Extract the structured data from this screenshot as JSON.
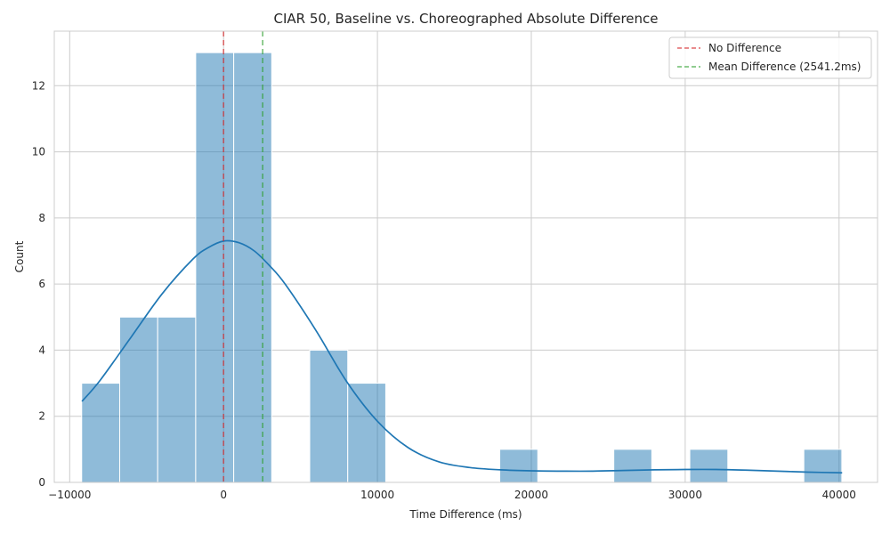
{
  "chart_data": {
    "type": "histogram",
    "title": "CIAR 50, Baseline vs. Choreographed Absolute Difference",
    "xlabel": "Time Difference (ms)",
    "ylabel": "Count",
    "xlim": [
      -11000,
      42500
    ],
    "ylim": [
      0,
      13.65
    ],
    "x_ticks": [
      -10000,
      0,
      10000,
      20000,
      30000,
      40000
    ],
    "x_tick_labels": [
      "−10000",
      "0",
      "10000",
      "20000",
      "30000",
      "40000"
    ],
    "y_ticks": [
      0,
      2,
      4,
      6,
      8,
      10,
      12
    ],
    "y_tick_labels": [
      "0",
      "2",
      "4",
      "6",
      "8",
      "10",
      "12"
    ],
    "bins": [
      {
        "x0": -9220,
        "x1": -6750,
        "count": 3
      },
      {
        "x0": -6750,
        "x1": -4280,
        "count": 5
      },
      {
        "x0": -4280,
        "x1": -1810,
        "count": 5
      },
      {
        "x0": -1810,
        "x1": 660,
        "count": 13
      },
      {
        "x0": 660,
        "x1": 3130,
        "count": 13
      },
      {
        "x0": 5600,
        "x1": 8070,
        "count": 4
      },
      {
        "x0": 8070,
        "x1": 10540,
        "count": 3
      },
      {
        "x0": 17950,
        "x1": 20420,
        "count": 1
      },
      {
        "x0": 25360,
        "x1": 27830,
        "count": 1
      },
      {
        "x0": 30300,
        "x1": 32770,
        "count": 1
      },
      {
        "x0": 37710,
        "x1": 40180,
        "count": 1
      }
    ],
    "kde": {
      "x": [
        -9200,
        -8000,
        -6000,
        -4000,
        -2000,
        -1000,
        0,
        1000,
        2000,
        3000,
        4000,
        6000,
        8000,
        10000,
        12000,
        14000,
        16000,
        18000,
        20000,
        22000,
        24000,
        26000,
        28000,
        30000,
        32000,
        34000,
        36000,
        38000,
        40200
      ],
      "y": [
        2.45,
        3.1,
        4.4,
        5.7,
        6.75,
        7.1,
        7.3,
        7.25,
        7.0,
        6.55,
        6.0,
        4.6,
        3.05,
        1.85,
        1.05,
        0.62,
        0.45,
        0.38,
        0.35,
        0.34,
        0.34,
        0.36,
        0.38,
        0.39,
        0.39,
        0.37,
        0.34,
        0.31,
        0.29
      ]
    },
    "reference_lines": [
      {
        "name": "No Difference",
        "x": 0,
        "color": "#d62728"
      },
      {
        "name": "Mean Difference (2541.2ms)",
        "x": 2541.2,
        "color": "#2ca02c"
      }
    ],
    "legend_position": "top-right",
    "grid": true,
    "bar_color": "#1f77b4",
    "kde_color": "#1f77b4"
  }
}
